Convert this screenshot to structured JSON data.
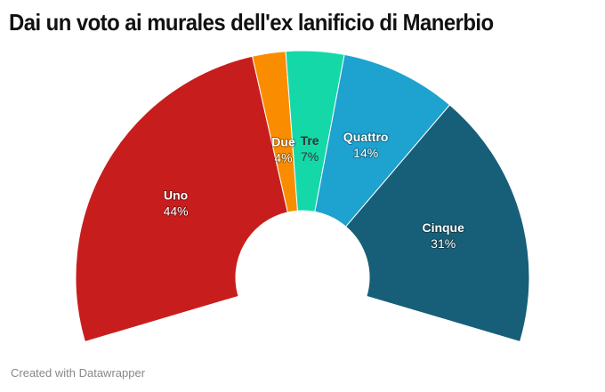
{
  "title": "Dai un voto ai murales dell'ex lanificio di Manerbio",
  "footer": "Created with Datawrapper",
  "chart_data": {
    "type": "pie",
    "variant": "semi-donut",
    "title": "Dai un voto ai murales dell'ex lanificio di Manerbio",
    "categories": [
      "Uno",
      "Due",
      "Tre",
      "Quattro",
      "Cinque"
    ],
    "values": [
      44,
      4,
      7,
      14,
      31
    ],
    "labels": [
      "44%",
      "4%",
      "7%",
      "14%",
      "31%"
    ],
    "colors": [
      "#c71e1d",
      "#fa8c00",
      "#15d8a8",
      "#1ea2cf",
      "#175f78"
    ],
    "label_text_colors": [
      "light",
      "light",
      "dark",
      "light",
      "light"
    ],
    "unit": "%"
  }
}
